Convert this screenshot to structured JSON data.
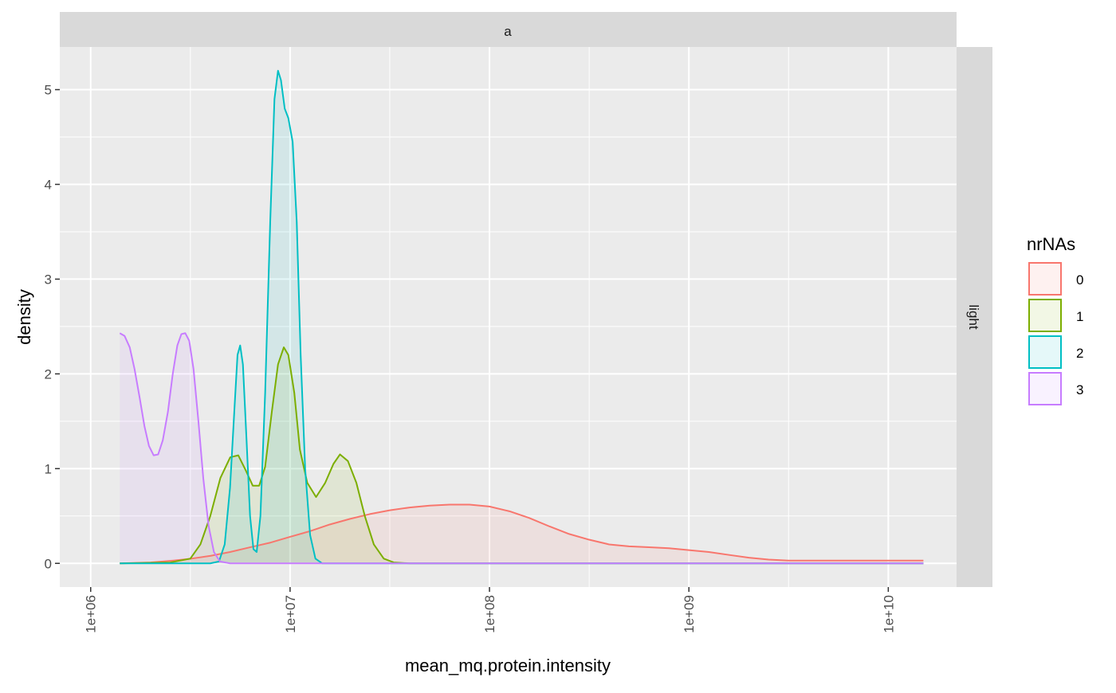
{
  "chart_data": {
    "type": "area",
    "x_scale": "log10",
    "xlabel": "mean_mq.protein.intensity",
    "ylabel": "density",
    "facet_top": "a",
    "facet_right": "light",
    "xlim": [
      700000,
      22000000000
    ],
    "ylim": [
      -0.25,
      5.45
    ],
    "x_ticks": [
      1000000,
      10000000,
      100000000,
      1000000000,
      10000000000
    ],
    "x_tick_labels": [
      "1e+06",
      "1e+07",
      "1e+08",
      "1e+09",
      "1e+10"
    ],
    "x_minor_ticks": [
      3162278,
      31622777,
      316227766,
      3162277660
    ],
    "y_ticks": [
      0,
      1,
      2,
      3,
      4,
      5
    ],
    "y_tick_labels": [
      "0",
      "1",
      "2",
      "3",
      "4",
      "5"
    ],
    "y_minor_ticks": [
      0.5,
      1.5,
      2.5,
      3.5,
      4.5
    ],
    "grid": true,
    "legend_title": "nrNAs",
    "legend_position": "right",
    "series": [
      {
        "name": "0",
        "color": "#F8766D",
        "points": [
          [
            1400000,
            0.0
          ],
          [
            2000000,
            0.01
          ],
          [
            2600000,
            0.03
          ],
          [
            3200000,
            0.05
          ],
          [
            4000000,
            0.08
          ],
          [
            5000000,
            0.12
          ],
          [
            6300000,
            0.17
          ],
          [
            8000000,
            0.22
          ],
          [
            10000000,
            0.28
          ],
          [
            12600000,
            0.34
          ],
          [
            15800000,
            0.41
          ],
          [
            20000000,
            0.47
          ],
          [
            25100000,
            0.52
          ],
          [
            31600000,
            0.56
          ],
          [
            39800000,
            0.59
          ],
          [
            50100000,
            0.61
          ],
          [
            63100000,
            0.62
          ],
          [
            79400000,
            0.62
          ],
          [
            100000000,
            0.6
          ],
          [
            126000000,
            0.55
          ],
          [
            158000000,
            0.48
          ],
          [
            200000000,
            0.39
          ],
          [
            251000000,
            0.31
          ],
          [
            316000000,
            0.25
          ],
          [
            398000000,
            0.2
          ],
          [
            501000000,
            0.18
          ],
          [
            631000000,
            0.17
          ],
          [
            794000000,
            0.16
          ],
          [
            1000000000,
            0.14
          ],
          [
            1260000000,
            0.12
          ],
          [
            1580000000,
            0.09
          ],
          [
            2000000000,
            0.06
          ],
          [
            2510000000,
            0.04
          ],
          [
            3160000000,
            0.03
          ],
          [
            3980000000,
            0.03
          ],
          [
            5010000000,
            0.03
          ],
          [
            6310000000,
            0.03
          ],
          [
            7940000000,
            0.03
          ],
          [
            10000000000,
            0.03
          ],
          [
            12600000000,
            0.03
          ],
          [
            15000000000,
            0.03
          ]
        ]
      },
      {
        "name": "1",
        "color": "#7CAE00",
        "points": [
          [
            1400000,
            0.0
          ],
          [
            2510000,
            0.01
          ],
          [
            3160000,
            0.05
          ],
          [
            3550000,
            0.2
          ],
          [
            3980000,
            0.5
          ],
          [
            4470000,
            0.9
          ],
          [
            5010000,
            1.12
          ],
          [
            5500000,
            1.14
          ],
          [
            6000000,
            0.98
          ],
          [
            6500000,
            0.82
          ],
          [
            7000000,
            0.82
          ],
          [
            7500000,
            1.02
          ],
          [
            8100000,
            1.6
          ],
          [
            8700000,
            2.1
          ],
          [
            9300000,
            2.28
          ],
          [
            9800000,
            2.2
          ],
          [
            10500000,
            1.8
          ],
          [
            11200000,
            1.2
          ],
          [
            12200000,
            0.85
          ],
          [
            13500000,
            0.7
          ],
          [
            15000000,
            0.85
          ],
          [
            16500000,
            1.05
          ],
          [
            17800000,
            1.15
          ],
          [
            19500000,
            1.08
          ],
          [
            21500000,
            0.85
          ],
          [
            23700000,
            0.5
          ],
          [
            26300000,
            0.2
          ],
          [
            29500000,
            0.05
          ],
          [
            33100000,
            0.01
          ],
          [
            39800000,
            0.0
          ],
          [
            15000000000,
            0.0
          ]
        ]
      },
      {
        "name": "2",
        "color": "#00BFC4",
        "points": [
          [
            1400000,
            0.0
          ],
          [
            3980000,
            0.0
          ],
          [
            4400000,
            0.02
          ],
          [
            4700000,
            0.2
          ],
          [
            5000000,
            0.8
          ],
          [
            5250000,
            1.6
          ],
          [
            5450000,
            2.2
          ],
          [
            5620000,
            2.3
          ],
          [
            5800000,
            2.1
          ],
          [
            6050000,
            1.3
          ],
          [
            6300000,
            0.5
          ],
          [
            6550000,
            0.15
          ],
          [
            6800000,
            0.12
          ],
          [
            7100000,
            0.5
          ],
          [
            7500000,
            1.8
          ],
          [
            7950000,
            3.6
          ],
          [
            8350000,
            4.9
          ],
          [
            8700000,
            5.2
          ],
          [
            9000000,
            5.1
          ],
          [
            9400000,
            4.8
          ],
          [
            9800000,
            4.7
          ],
          [
            10300000,
            4.45
          ],
          [
            10800000,
            3.6
          ],
          [
            11300000,
            2.2
          ],
          [
            11900000,
            1.0
          ],
          [
            12600000,
            0.3
          ],
          [
            13400000,
            0.05
          ],
          [
            14500000,
            0.0
          ],
          [
            15000000000,
            0.0
          ]
        ]
      },
      {
        "name": "3",
        "color": "#C77CFF",
        "points": [
          [
            1400000,
            2.43
          ],
          [
            1480000,
            2.4
          ],
          [
            1570000,
            2.28
          ],
          [
            1660000,
            2.05
          ],
          [
            1760000,
            1.75
          ],
          [
            1860000,
            1.45
          ],
          [
            1960000,
            1.24
          ],
          [
            2070000,
            1.14
          ],
          [
            2180000,
            1.15
          ],
          [
            2300000,
            1.3
          ],
          [
            2440000,
            1.6
          ],
          [
            2580000,
            2.0
          ],
          [
            2720000,
            2.3
          ],
          [
            2850000,
            2.42
          ],
          [
            2980000,
            2.43
          ],
          [
            3120000,
            2.35
          ],
          [
            3280000,
            2.05
          ],
          [
            3470000,
            1.5
          ],
          [
            3670000,
            0.9
          ],
          [
            3900000,
            0.4
          ],
          [
            4150000,
            0.12
          ],
          [
            4450000,
            0.02
          ],
          [
            5000000,
            0.0
          ],
          [
            15000000000,
            0.0
          ]
        ]
      }
    ]
  }
}
